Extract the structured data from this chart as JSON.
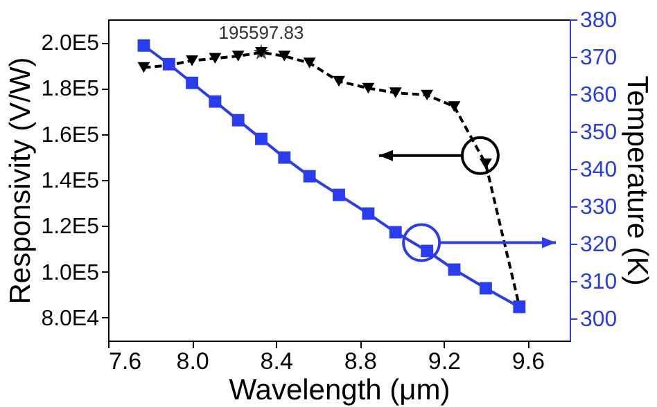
{
  "chart_data": {
    "type": "line",
    "xlabel": "Wavelength (μm)",
    "ylabel": "Responsivity (V/W)",
    "y2label": "Temperature (K)",
    "x": [
      7.77,
      7.89,
      8.0,
      8.11,
      8.22,
      8.33,
      8.44,
      8.56,
      8.7,
      8.84,
      8.97,
      9.12,
      9.25,
      9.4,
      9.56
    ],
    "series": [
      {
        "color": "#000000",
        "marker": "triangle",
        "line_style": "dashed",
        "axis": "y",
        "values": [
          189000,
          190000,
          192000,
          193000,
          194000,
          195597.83,
          194000,
          191000,
          183000,
          180000,
          178000,
          177000,
          172000,
          147000,
          85000
        ]
      },
      {
        "color": "#2a3cf0",
        "marker": "square",
        "line_style": "solid",
        "axis": "y2",
        "values": [
          373,
          368,
          363,
          358,
          353,
          348,
          343,
          338,
          333,
          328,
          323,
          318,
          313,
          308,
          303
        ]
      }
    ],
    "annotations": [
      {
        "text": "195597.83",
        "x": 8.33,
        "y": 195597.83
      }
    ],
    "xlim": [
      7.6,
      9.8
    ],
    "xticks": [
      7.6,
      {
        "value": 8,
        "label": "8.0"
      },
      8.4,
      8.8,
      9.2,
      9.6
    ],
    "ylim": [
      70000,
      210000
    ],
    "yticks": [
      {
        "value": 80000,
        "label": "8.0E4"
      },
      {
        "value": 100000,
        "label": "1.0E5"
      },
      {
        "value": 120000,
        "label": "1.2E5"
      },
      {
        "value": 140000,
        "label": "1.4E5"
      },
      {
        "value": 160000,
        "label": "1.6E5"
      },
      {
        "value": 180000,
        "label": "1.8E5"
      },
      {
        "value": 200000,
        "label": "2.0E5"
      }
    ],
    "y2lim": [
      294,
      380
    ],
    "y2ticks": [
      300,
      310,
      320,
      330,
      340,
      350,
      360,
      370,
      380
    ],
    "grid": false
  }
}
